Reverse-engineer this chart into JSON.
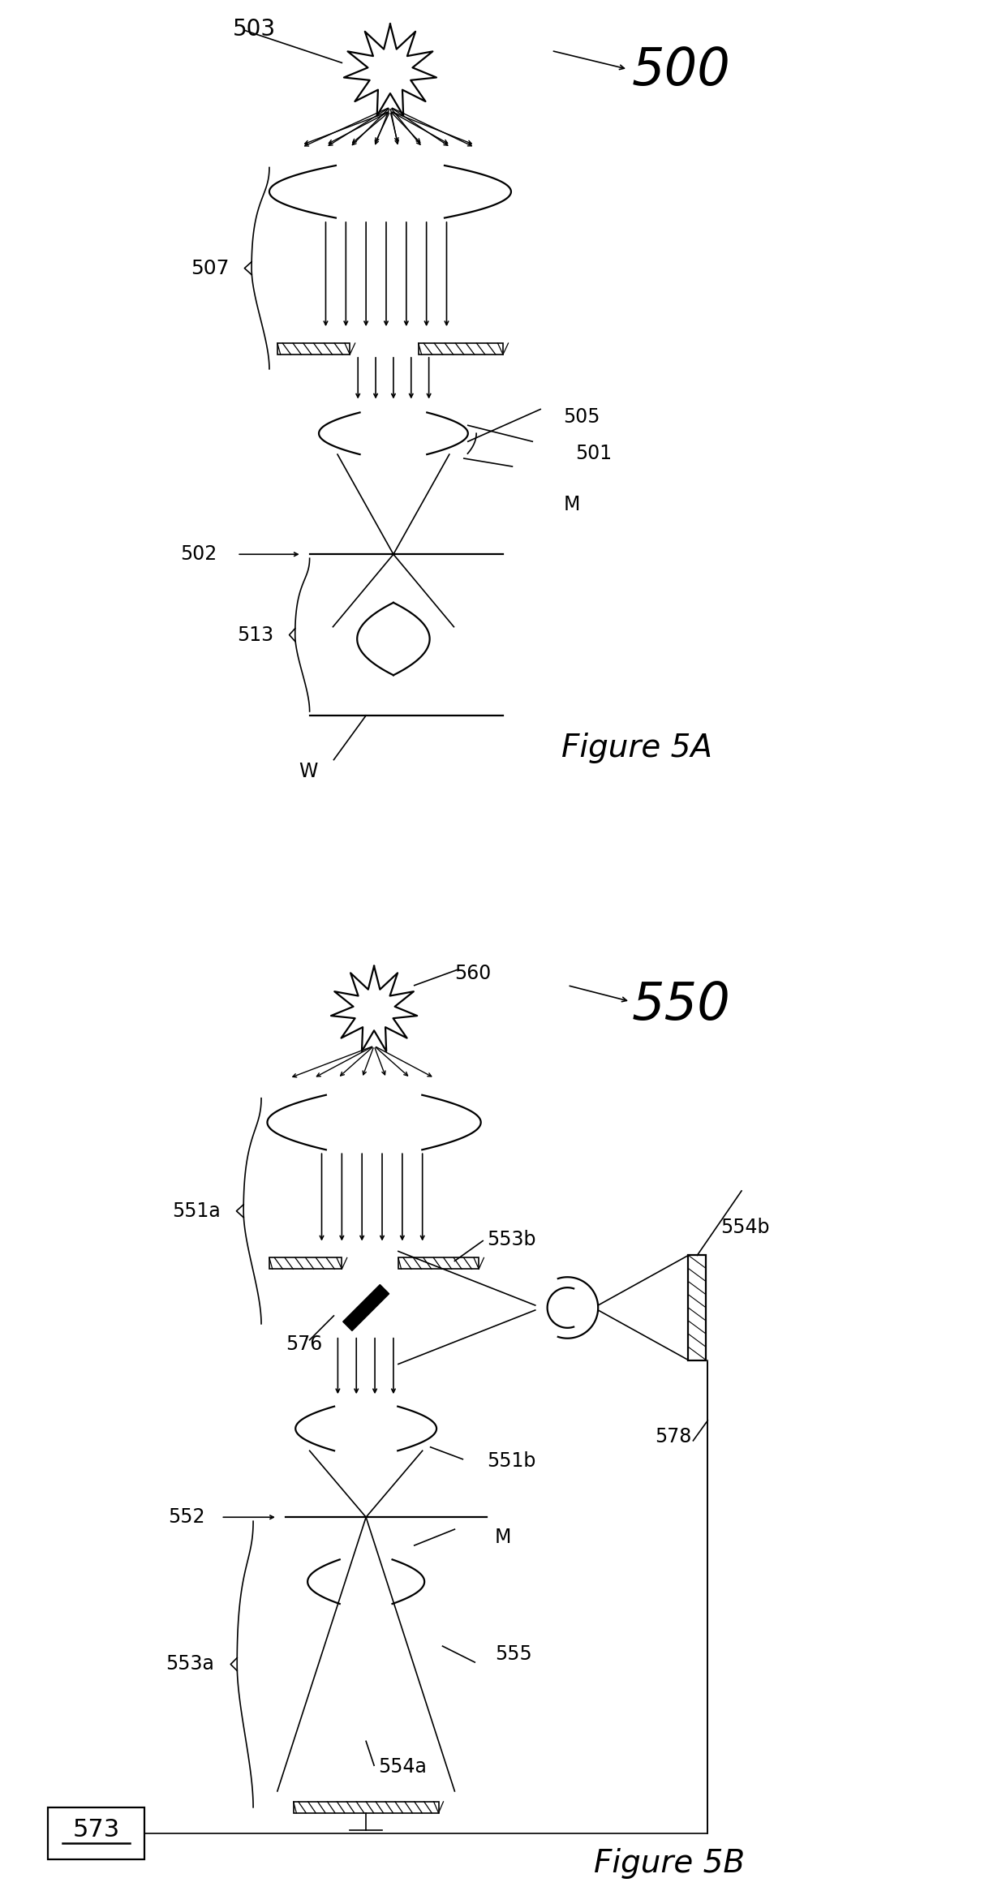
{
  "fig_width": 12.4,
  "fig_height": 23.31,
  "bg_color": "#ffffff",
  "fig5a_label": "Figure 5A",
  "fig5b_label": "Figure 5B",
  "label_500": "500",
  "label_503": "503",
  "label_507": "507",
  "label_505": "505",
  "label_501": "501",
  "label_M_5a": "M",
  "label_502": "502",
  "label_513": "513",
  "label_W": "W",
  "label_550": "550",
  "label_560": "560",
  "label_551a": "551a",
  "label_551b": "551b",
  "label_552": "552",
  "label_553a": "553a",
  "label_553b": "553b",
  "label_554a": "554a",
  "label_554b": "554b",
  "label_555": "555",
  "label_576": "576",
  "label_578": "578",
  "label_573": "573",
  "label_M_5b": "M",
  "lw_main": 1.6,
  "lw_light": 1.2
}
